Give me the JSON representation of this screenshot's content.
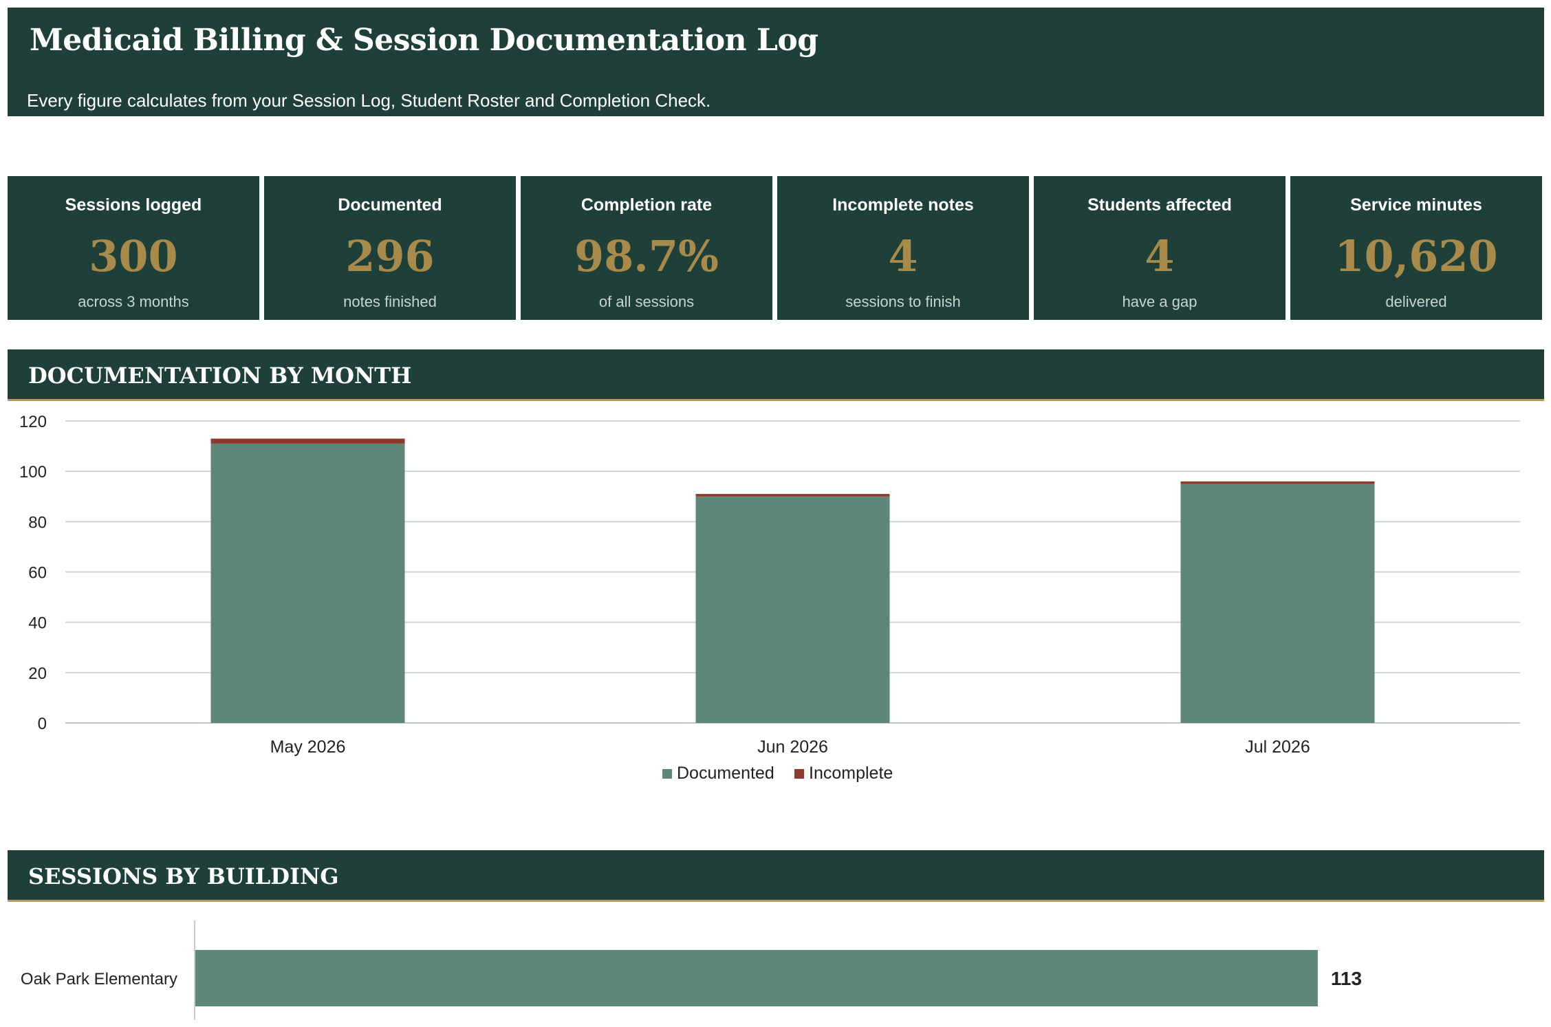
{
  "header": {
    "title": "Medicaid Billing & Session Documentation Log",
    "subtitle": "Every figure calculates from your Session Log, Student Roster and Completion Check."
  },
  "kpis": [
    {
      "label": "Sessions logged",
      "value": "300",
      "sub": "across 3 months"
    },
    {
      "label": "Documented",
      "value": "296",
      "sub": "notes finished"
    },
    {
      "label": "Completion rate",
      "value": "98.7%",
      "sub": "of all sessions"
    },
    {
      "label": "Incomplete notes",
      "value": "4",
      "sub": "sessions to finish"
    },
    {
      "label": "Students affected",
      "value": "4",
      "sub": "have a gap"
    },
    {
      "label": "Service minutes",
      "value": "10,620",
      "sub": "delivered"
    }
  ],
  "sections": {
    "by_month": "DOCUMENTATION BY MONTH",
    "by_building": "SESSIONS BY BUILDING"
  },
  "colors": {
    "primary": "#1f3f39",
    "gold": "#a88a4a",
    "documented": "#5f8778",
    "incomplete": "#8e3a2f"
  },
  "chart_data": [
    {
      "type": "bar",
      "stacked": true,
      "categories": [
        "May 2026",
        "Jun 2026",
        "Jul 2026"
      ],
      "series": [
        {
          "name": "Documented",
          "values": [
            111,
            90,
            95
          ]
        },
        {
          "name": "Incomplete",
          "values": [
            2,
            1,
            1
          ]
        }
      ],
      "ylim": [
        0,
        120
      ],
      "yticks": [
        "0",
        "20",
        "40",
        "60",
        "80",
        "100",
        "120"
      ],
      "grid": true,
      "legend": "bottom"
    },
    {
      "type": "bar",
      "orientation": "horizontal",
      "categories": [
        "Oak Park Elementary"
      ],
      "values": [
        113
      ],
      "data_labels": [
        "113"
      ]
    }
  ]
}
